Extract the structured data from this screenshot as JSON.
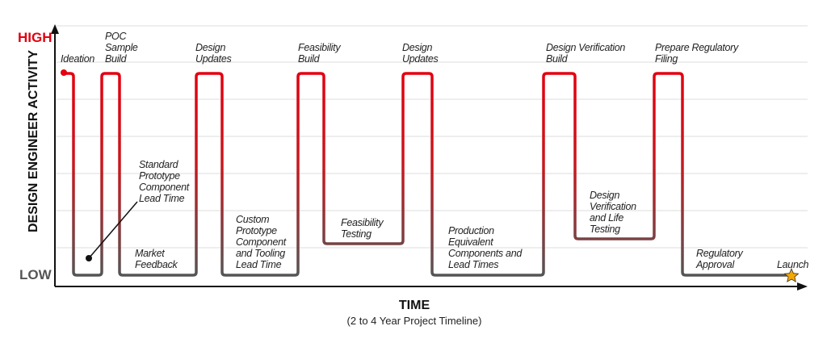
{
  "y_axis": {
    "title": "DESIGN ENGINEER ACTIVITY",
    "high": "HIGH",
    "low": "LOW"
  },
  "x_axis": {
    "title": "TIME",
    "subtitle": "(2 to 4 Year Project Timeline)"
  },
  "colors": {
    "high": "#e3000f",
    "low": "#555555",
    "star": "#f5a800"
  },
  "labels": {
    "ideation": [
      "Ideation"
    ],
    "poc": [
      "POC",
      "Sample",
      "Build"
    ],
    "design_updates_1": [
      "Design",
      "Updates"
    ],
    "feasibility_build": [
      "Feasibility",
      "Build"
    ],
    "design_updates_2": [
      "Design",
      "Updates"
    ],
    "dv_build": [
      "Design Verification",
      "Build"
    ],
    "regulatory_filing": [
      "Prepare Regulatory",
      "Filing"
    ],
    "standard_proto": [
      "Standard",
      "Prototype",
      "Component",
      "Lead Time"
    ],
    "market_feedback": [
      "Market",
      "Feedback"
    ],
    "custom_proto": [
      "Custom",
      "Prototype",
      "Component",
      "and Tooling",
      "Lead Time"
    ],
    "feasibility_testing": [
      "Feasibility",
      "Testing"
    ],
    "production_eq": [
      "Production",
      "Equivalent",
      "Components and",
      "Lead Times"
    ],
    "dv_life": [
      "Design",
      "Verification",
      "and Life",
      "Testing"
    ],
    "regulatory_approval": [
      "Regulatory",
      "Approval"
    ],
    "launch": [
      "Launch"
    ]
  }
}
